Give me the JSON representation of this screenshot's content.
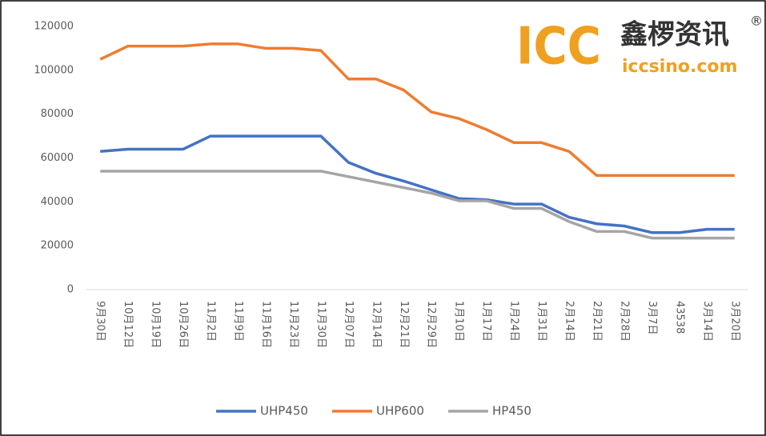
{
  "chart_data": {
    "type": "line",
    "logo": {
      "mark": "ICC",
      "name": "鑫椤资讯",
      "registered": "®",
      "site": "iccsino.com"
    },
    "categories": [
      "9月30日",
      "10月12日",
      "10月19日",
      "10月26日",
      "11月2日",
      "11月9日",
      "11月16日",
      "11月23日",
      "11月30日",
      "12月07日",
      "12月14日",
      "12月21日",
      "12月29日",
      "1月10日",
      "1月17日",
      "1月24日",
      "1月31日",
      "2月14日",
      "2月21日",
      "2月28日",
      "3月7日",
      "43538",
      "3月14日",
      "3月20日"
    ],
    "series": [
      {
        "name": "UHP450",
        "color": "#4472c4",
        "values": [
          63000,
          64000,
          64000,
          64000,
          70000,
          70000,
          70000,
          70000,
          70000,
          58000,
          53000,
          49500,
          45500,
          41500,
          41000,
          39000,
          39000,
          33000,
          30000,
          29000,
          26000,
          26000,
          27500,
          27500
        ]
      },
      {
        "name": "UHP600",
        "color": "#ed7d31",
        "values": [
          105000,
          111000,
          111000,
          111000,
          112000,
          112000,
          110000,
          110000,
          109000,
          96000,
          96000,
          91000,
          81000,
          78000,
          73000,
          67000,
          67000,
          63000,
          52000,
          52000,
          52000,
          52000,
          52000,
          52000
        ]
      },
      {
        "name": "HP450",
        "color": "#a5a5a5",
        "values": [
          54000,
          54000,
          54000,
          54000,
          54000,
          54000,
          54000,
          54000,
          54000,
          51500,
          49000,
          46500,
          44000,
          40500,
          40500,
          37000,
          37000,
          31000,
          26500,
          26500,
          23500,
          23500,
          23500,
          23500
        ]
      }
    ],
    "ylim": [
      0,
      120000
    ],
    "yticks": [
      0,
      20000,
      40000,
      60000,
      80000,
      100000,
      120000
    ],
    "legend": "bottom"
  }
}
